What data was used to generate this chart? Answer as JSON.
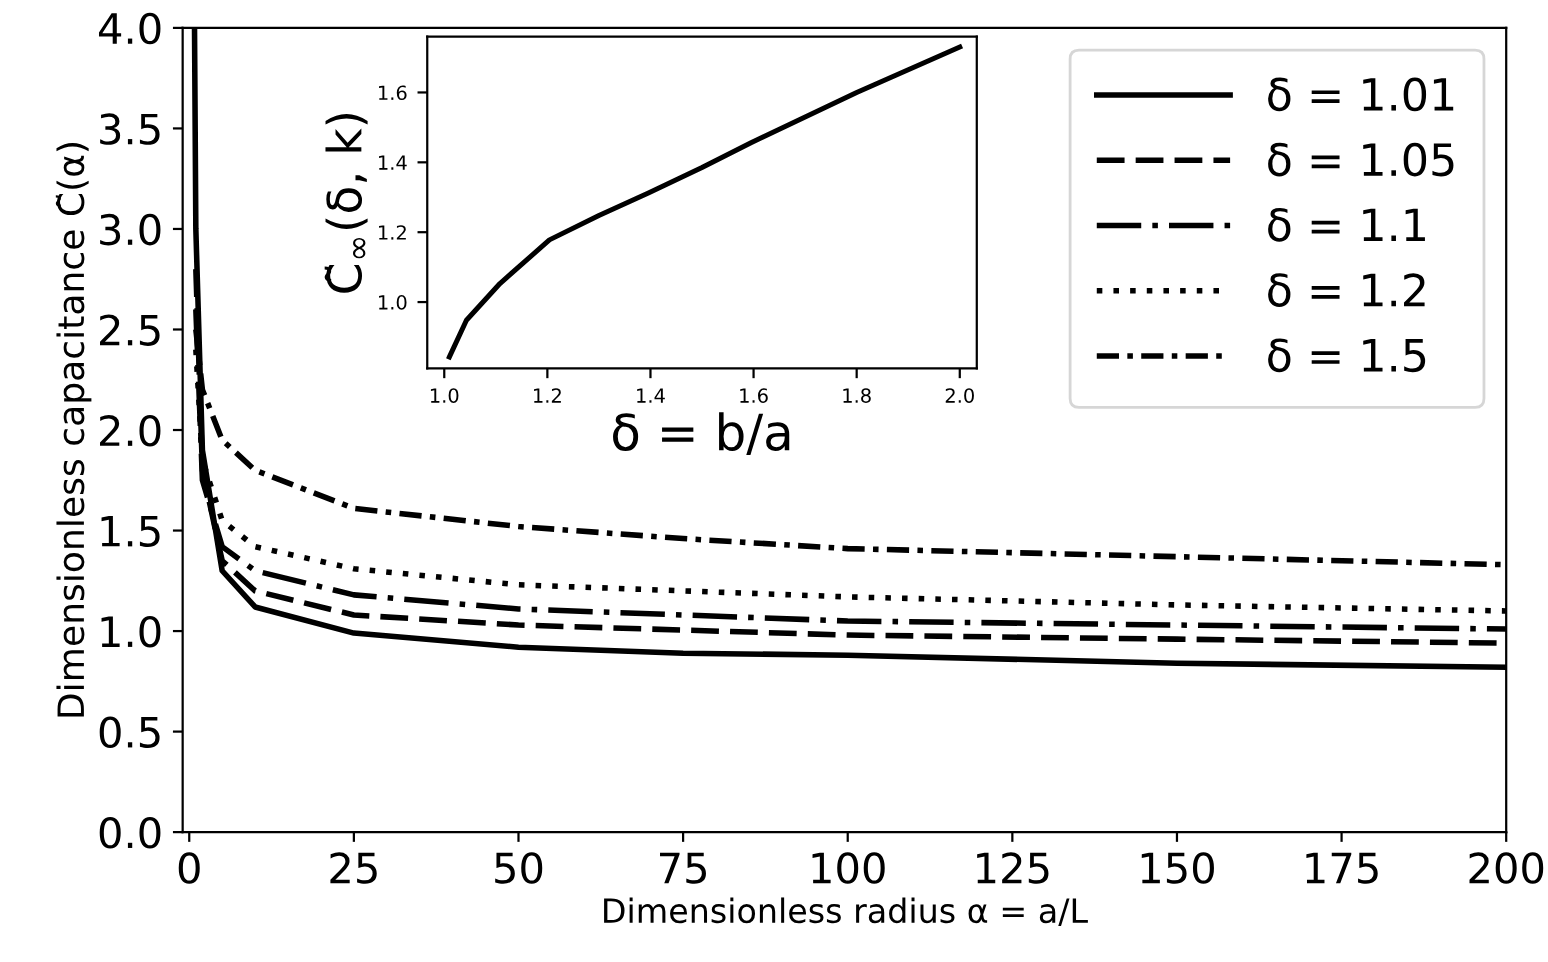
{
  "chart_data": [
    {
      "type": "line",
      "xlabel": "Dimensionless radius α = a/L",
      "ylabel": "Dimensionless capacitance C̃(α)",
      "xlim": [
        -1,
        200
      ],
      "ylim": [
        0,
        4
      ],
      "xticks": [
        0,
        25,
        50,
        75,
        100,
        125,
        150,
        175,
        200
      ],
      "yticks": [
        {
          "value": 0,
          "label": "0.0"
        },
        0.5,
        {
          "value": 1,
          "label": "1.0"
        },
        1.5,
        {
          "value": 2,
          "label": "2.0"
        },
        2.5,
        {
          "value": 3,
          "label": "3.0"
        },
        3.5,
        {
          "value": 4,
          "label": "4.0"
        }
      ],
      "grid": false,
      "legend": "top right",
      "marker": "none",
      "series": [
        {
          "name": "δ = 1.01",
          "color": "#000000",
          "line_style": "solid",
          "x": [
            0.8,
            1,
            2,
            5,
            10,
            25,
            50,
            75,
            100,
            150,
            200
          ],
          "values": [
            4.0,
            3.0,
            1.9,
            1.3,
            1.12,
            0.99,
            0.92,
            0.89,
            0.88,
            0.84,
            0.82
          ]
        },
        {
          "name": "δ = 1.05",
          "color": "#000000",
          "line_style": "dashed",
          "x": [
            1,
            2,
            5,
            10,
            25,
            50,
            100,
            150,
            200
          ],
          "values": [
            2.8,
            1.8,
            1.35,
            1.2,
            1.08,
            1.03,
            0.98,
            0.96,
            0.94
          ]
        },
        {
          "name": "δ = 1.1",
          "color": "#000000",
          "line_style": "longdashdot",
          "x": [
            1,
            2,
            5,
            10,
            25,
            50,
            100,
            150,
            200
          ],
          "values": [
            2.6,
            1.75,
            1.42,
            1.3,
            1.18,
            1.11,
            1.05,
            1.03,
            1.01
          ]
        },
        {
          "name": "δ = 1.2",
          "color": "#000000",
          "line_style": "dotted",
          "x": [
            1,
            2,
            5,
            10,
            25,
            50,
            100,
            150,
            200
          ],
          "values": [
            2.4,
            1.85,
            1.55,
            1.42,
            1.31,
            1.23,
            1.17,
            1.13,
            1.1
          ]
        },
        {
          "name": "δ = 1.5",
          "color": "#000000",
          "line_style": "dashdot",
          "x": [
            1,
            2,
            5,
            10,
            25,
            50,
            75,
            100,
            150,
            200
          ],
          "values": [
            2.5,
            2.2,
            1.95,
            1.8,
            1.61,
            1.52,
            1.46,
            1.41,
            1.37,
            1.33
          ]
        }
      ]
    },
    {
      "type": "line",
      "xlabel": "δ = b/a",
      "ylabel": "C̃$_{∞}$(δ, k)",
      "xlim": [
        0.967,
        2.033
      ],
      "ylim": [
        0.81,
        1.76
      ],
      "xticks": [
        {
          "value": 1.0,
          "label": "1.0"
        },
        {
          "value": 1.2,
          "label": "1.2"
        },
        {
          "value": 1.4,
          "label": "1.4"
        },
        {
          "value": 1.6,
          "label": "1.6"
        },
        {
          "value": 1.8,
          "label": "1.8"
        },
        {
          "value": 2.0,
          "label": "2.0"
        }
      ],
      "yticks": [
        {
          "value": 1.0,
          "label": "1.0"
        },
        {
          "value": 1.2,
          "label": "1.2"
        },
        {
          "value": 1.4,
          "label": "1.4"
        },
        {
          "value": 1.6,
          "label": "1.6"
        }
      ],
      "grid": false,
      "legend": false,
      "marker": "none",
      "series": [
        {
          "color": "#000000",
          "line_style": "solid",
          "x": [
            1.01,
            1.043,
            1.108,
            1.204,
            1.3,
            1.396,
            1.5,
            1.595,
            1.8,
            2.0
          ],
          "values": [
            0.843,
            0.948,
            1.053,
            1.178,
            1.248,
            1.312,
            1.385,
            1.456,
            1.6,
            1.73
          ]
        }
      ]
    }
  ]
}
